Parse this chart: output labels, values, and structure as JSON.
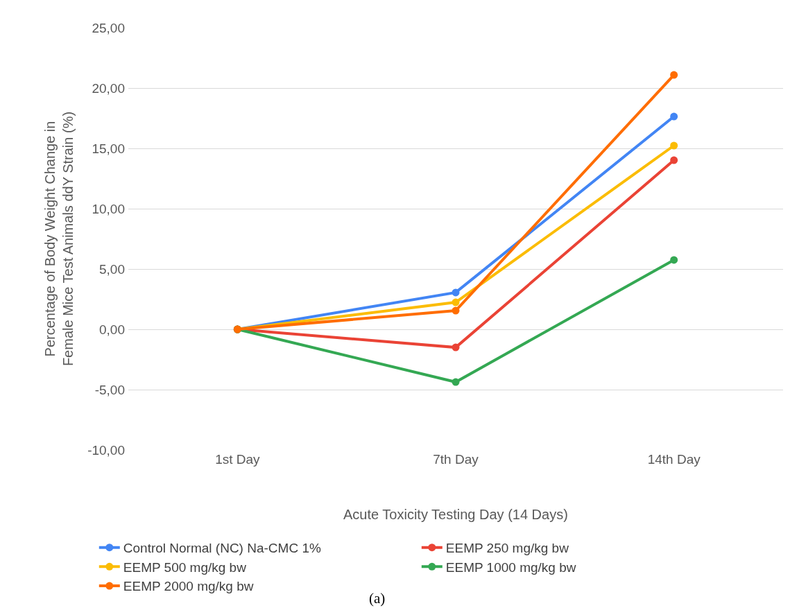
{
  "chart_data": {
    "type": "line",
    "xlabel": "Acute Toxicity Testing Day (14 Days)",
    "ylabel": "Percentage of Body Weight Change in Female Mice Test Animals ddY Strain (%)",
    "categories": [
      "1st Day",
      "7th Day",
      "14th Day"
    ],
    "series": [
      {
        "name": "Control Normal (NC) Na-CMC 1%",
        "color": "#4285f4",
        "values": [
          0,
          3.05,
          17.64
        ]
      },
      {
        "name": "EEMP 250 mg/kg bw",
        "color": "#ea4335",
        "values": [
          0,
          -1.5,
          14.02
        ]
      },
      {
        "name": "EEMP 500 mg/kg bw",
        "color": "#fbbc04",
        "values": [
          0,
          2.24,
          15.23
        ]
      },
      {
        "name": "EEMP 1000 mg/kg bw",
        "color": "#34a853",
        "values": [
          0,
          -4.37,
          5.75
        ]
      },
      {
        "name": "EEMP 2000 mg/kg bw",
        "color": "#ff6d01",
        "values": [
          0,
          1.55,
          21.09
        ]
      }
    ],
    "ylim": [
      -10,
      25
    ],
    "yticks": [
      {
        "value": -10,
        "label": "-10,00"
      },
      {
        "value": -5,
        "label": "-5,00"
      },
      {
        "value": 0,
        "label": "0,00"
      },
      {
        "value": 5,
        "label": "5,00"
      },
      {
        "value": 10,
        "label": "10,00"
      },
      {
        "value": 15,
        "label": "15,00"
      },
      {
        "value": 20,
        "label": "20,00"
      },
      {
        "value": 25,
        "label": "25,00"
      }
    ],
    "grid": "y",
    "legend": "bottom",
    "marker": "circle",
    "line_style": "solid",
    "annotations": [
      "(a)"
    ]
  }
}
